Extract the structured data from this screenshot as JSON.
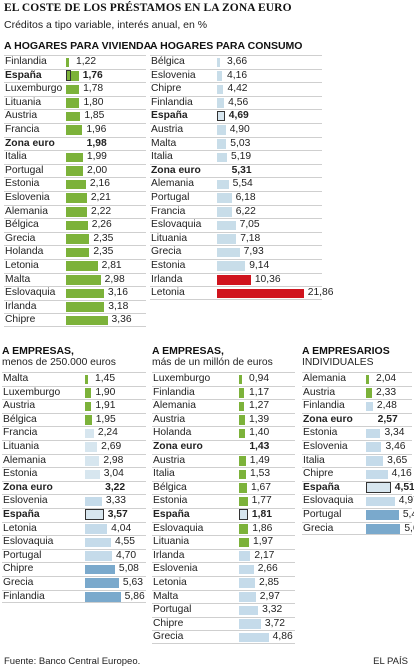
{
  "header": {
    "title": "EL COSTE DE LOS PRÉSTAMOS EN LA ZONA EURO",
    "subtitle": "Créditos a tipo variable, interés anual, en %"
  },
  "footer": {
    "source": "Fuente: Banco Central Europeo.",
    "brand": "EL PAÍS"
  },
  "colors": {
    "text": "#222222",
    "grid": "#cfcfcf",
    "highlight_box": "#333333"
  },
  "chart_data": [
    {
      "id": "hogares-vivienda",
      "type": "bar",
      "orientation": "horizontal",
      "title": "A HOGARES PARA VIVIENDA",
      "subtitle": "",
      "bar_color": "#7cb23a",
      "highlight": [
        "España",
        "Zona euro"
      ],
      "xlim": [
        0,
        4
      ],
      "categories": [
        "Finlandia",
        "España",
        "Luxemburgo",
        "Lituania",
        "Austria",
        "Francia",
        "Zona euro",
        "Italia",
        "Portugal",
        "Estonia",
        "Eslovenia",
        "Alemania",
        "Bélgica",
        "Grecia",
        "Holanda",
        "Letonia",
        "Malta",
        "Eslovaquia",
        "Irlanda",
        "Chipre"
      ],
      "values": [
        1.22,
        1.76,
        1.78,
        1.8,
        1.85,
        1.96,
        1.98,
        1.99,
        2.0,
        2.16,
        2.21,
        2.22,
        2.26,
        2.35,
        2.35,
        2.81,
        2.98,
        3.16,
        3.18,
        3.36
      ],
      "labels": [
        "1,22",
        "1,76",
        "1,78",
        "1,80",
        "1,85",
        "1,96",
        "1,98",
        "1,99",
        "2,00",
        "2,16",
        "2,21",
        "2,22",
        "2,26",
        "2,35",
        "2,35",
        "2,81",
        "2,98",
        "3,16",
        "3,18",
        "3,36"
      ]
    },
    {
      "id": "hogares-consumo",
      "type": "bar",
      "orientation": "horizontal",
      "title": "A HOGARES PARA CONSUMO",
      "subtitle": "",
      "bar_color": "#cfe3ee",
      "highlight": [
        "España",
        "Zona euro"
      ],
      "xlim": [
        0,
        22
      ],
      "categories": [
        "Bélgica",
        "Eslovenia",
        "Chipre",
        "Finlandia",
        "España",
        "Austria",
        "Malta",
        "Italia",
        "Zona euro",
        "Alemania",
        "Portugal",
        "Francia",
        "Eslovaquia",
        "Lituania",
        "Grecia",
        "Estonia",
        "Irlanda",
        "Letonia"
      ],
      "values": [
        3.66,
        4.16,
        4.42,
        4.56,
        4.69,
        4.9,
        5.03,
        5.19,
        5.31,
        5.54,
        6.18,
        6.22,
        7.05,
        7.18,
        7.93,
        9.14,
        10.36,
        21.86
      ],
      "labels": [
        "3,66",
        "4,16",
        "4,42",
        "4,56",
        "4,69",
        "4,90",
        "5,03",
        "5,19",
        "5,31",
        "5,54",
        "6,18",
        "6,22",
        "7,05",
        "7,18",
        "7,93",
        "9,14",
        "10,36",
        "21,86"
      ]
    },
    {
      "id": "empresas-menos",
      "type": "bar",
      "orientation": "horizontal",
      "title": "A EMPRESAS,",
      "subtitle": "menos de 250.000 euros",
      "bar_color": "#7cb23a",
      "highlight": [
        "Zona euro",
        "España"
      ],
      "xlim": [
        0,
        7
      ],
      "categories": [
        "Malta",
        "Luxemburgo",
        "Austria",
        "Bélgica",
        "Francia",
        "Lituania",
        "Alemania",
        "Estonia",
        "Zona euro",
        "Eslovenia",
        "España",
        "Letonia",
        "Eslovaquia",
        "Portugal",
        "Chipre",
        "Grecia",
        "Finlandia"
      ],
      "values": [
        1.45,
        1.9,
        1.91,
        1.95,
        2.24,
        2.69,
        2.98,
        3.04,
        3.22,
        3.33,
        3.57,
        4.04,
        4.55,
        4.7,
        5.08,
        5.63,
        5.86
      ],
      "labels": [
        "1,45",
        "1,90",
        "1,91",
        "1,95",
        "2,24",
        "2,69",
        "2,98",
        "3,04",
        "3,22",
        "3,33",
        "3,57",
        "4,04",
        "4,55",
        "4,70",
        "5,08",
        "5,63",
        "5,86"
      ]
    },
    {
      "id": "empresas-mas",
      "type": "bar",
      "orientation": "horizontal",
      "title": "A EMPRESAS,",
      "subtitle": "más de un millón de euros",
      "bar_color": "#7cb23a",
      "highlight": [
        "Zona euro",
        "España"
      ],
      "xlim": [
        0,
        5.5
      ],
      "categories": [
        "Luxemburgo",
        "Finlandia",
        "Alemania",
        "Austria",
        "Holanda",
        "Zona euro",
        "Austria",
        "Italia",
        "Bélgica",
        "Estonia",
        "España",
        "Eslovaquia",
        "Lituania",
        "Irlanda",
        "Eslovenia",
        "Letonia",
        "Malta",
        "Portugal",
        "Chipre",
        "Grecia"
      ],
      "values": [
        0.94,
        1.17,
        1.27,
        1.39,
        1.4,
        1.43,
        1.49,
        1.53,
        1.67,
        1.77,
        1.81,
        1.86,
        1.97,
        2.17,
        2.66,
        2.85,
        2.97,
        3.32,
        3.72,
        4.86
      ],
      "labels": [
        "0,94",
        "1,17",
        "1,27",
        "1,39",
        "1,40",
        "1,43",
        "1,49",
        "1,53",
        "1,67",
        "1,77",
        "1,81",
        "1,86",
        "1,97",
        "2,17",
        "2,66",
        "2,85",
        "2,97",
        "3,32",
        "3,72",
        "4,86"
      ]
    },
    {
      "id": "empresarios-individuales",
      "type": "bar",
      "orientation": "horizontal",
      "title": "A EMPRESARIOS",
      "subtitle": "INDIVIDUALES",
      "bar_color": "#b9d4e4",
      "highlight": [
        "Zona euro",
        "España"
      ],
      "xlim": [
        0,
        6.2
      ],
      "categories": [
        "Alemania",
        "Austria",
        "Finlandia",
        "Zona euro",
        "Estonia",
        "Eslovenia",
        "Italia",
        "Chipre",
        "España",
        "Eslovaquia",
        "Portugal",
        "Grecia"
      ],
      "values": [
        2.04,
        2.33,
        2.48,
        2.57,
        3.34,
        3.46,
        3.65,
        4.16,
        4.51,
        4.97,
        5.43,
        5.6
      ],
      "labels": [
        "2,04",
        "2,33",
        "2,48",
        "2,57",
        "3,34",
        "3,46",
        "3,65",
        "4,16",
        "4,51",
        "4,97",
        "5,43",
        "5,60"
      ]
    }
  ]
}
